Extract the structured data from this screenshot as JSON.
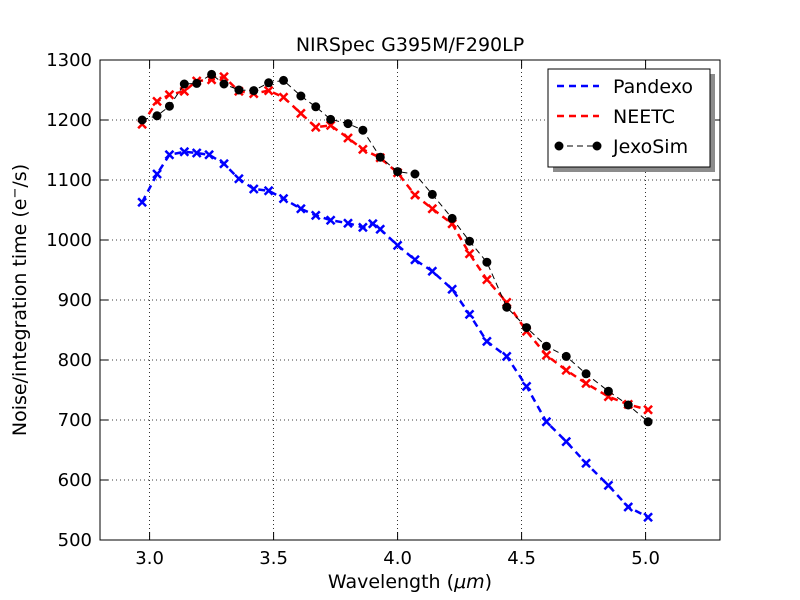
{
  "chart_data": {
    "type": "line",
    "title": "NIRSpec G395M/F290LP",
    "xlabel": "Wavelength (",
    "xlabel_unit": "μm",
    "xlabel_close": ")",
    "ylabel": "Noise/integration time (e",
    "ylabel_sup": "−",
    "ylabel_close": "/s)",
    "xlim": [
      2.8,
      5.3
    ],
    "ylim": [
      500,
      1300
    ],
    "xticks": [
      3.0,
      3.5,
      4.0,
      4.5,
      5.0
    ],
    "xtick_labels": [
      "3.0",
      "3.5",
      "4.0",
      "4.5",
      "5.0"
    ],
    "yticks": [
      500,
      600,
      700,
      800,
      900,
      1000,
      1100,
      1200,
      1300
    ],
    "ytick_labels": [
      "500",
      "600",
      "700",
      "800",
      "900",
      "1000",
      "1100",
      "1200",
      "1300"
    ],
    "grid": true,
    "legend_position": "top-right",
    "series": [
      {
        "name": "Pandexo",
        "color": "#0000ff",
        "linestyle": "dashed",
        "marker": "x",
        "x": [
          2.97,
          3.03,
          3.08,
          3.14,
          3.19,
          3.24,
          3.3,
          3.36,
          3.42,
          3.48,
          3.54,
          3.61,
          3.67,
          3.73,
          3.8,
          3.86,
          3.9,
          3.93,
          4.0,
          4.07,
          4.14,
          4.22,
          4.29,
          4.36,
          4.44,
          4.52,
          4.6,
          4.68,
          4.76,
          4.85,
          4.93,
          5.01
        ],
        "y": [
          1063,
          1110,
          1142,
          1147,
          1145,
          1142,
          1127,
          1102,
          1085,
          1082,
          1069,
          1052,
          1041,
          1033,
          1028,
          1021,
          1027,
          1018,
          991,
          967,
          948,
          918,
          876,
          831,
          806,
          756,
          697,
          664,
          628,
          591,
          555,
          538
        ]
      },
      {
        "name": "NEETC",
        "color": "#ff0000",
        "linestyle": "dashed",
        "marker": "x",
        "x": [
          2.97,
          3.03,
          3.08,
          3.14,
          3.19,
          3.25,
          3.3,
          3.36,
          3.42,
          3.48,
          3.54,
          3.61,
          3.67,
          3.73,
          3.8,
          3.86,
          3.93,
          4.0,
          4.07,
          4.14,
          4.22,
          4.29,
          4.36,
          4.44,
          4.52,
          4.6,
          4.68,
          4.76,
          4.85,
          4.93,
          5.01
        ],
        "y": [
          1193,
          1231,
          1242,
          1248,
          1265,
          1267,
          1272,
          1248,
          1244,
          1249,
          1238,
          1211,
          1188,
          1191,
          1170,
          1151,
          1137,
          1112,
          1075,
          1052,
          1027,
          977,
          934,
          896,
          848,
          808,
          783,
          761,
          739,
          726,
          717
        ]
      },
      {
        "name": "JexoSim",
        "color": "#000000",
        "linestyle": "dashed",
        "marker": "o",
        "x": [
          2.97,
          3.03,
          3.08,
          3.14,
          3.19,
          3.25,
          3.3,
          3.36,
          3.42,
          3.48,
          3.54,
          3.61,
          3.67,
          3.73,
          3.8,
          3.86,
          3.93,
          4.0,
          4.07,
          4.14,
          4.22,
          4.29,
          4.36,
          4.44,
          4.52,
          4.6,
          4.68,
          4.76,
          4.85,
          4.93,
          5.01
        ],
        "y": [
          1200,
          1207,
          1223,
          1260,
          1261,
          1276,
          1260,
          1250,
          1249,
          1262,
          1266,
          1240,
          1222,
          1201,
          1194,
          1183,
          1138,
          1114,
          1110,
          1076,
          1036,
          998,
          963,
          888,
          854,
          823,
          806,
          777,
          748,
          725,
          697
        ]
      }
    ]
  }
}
